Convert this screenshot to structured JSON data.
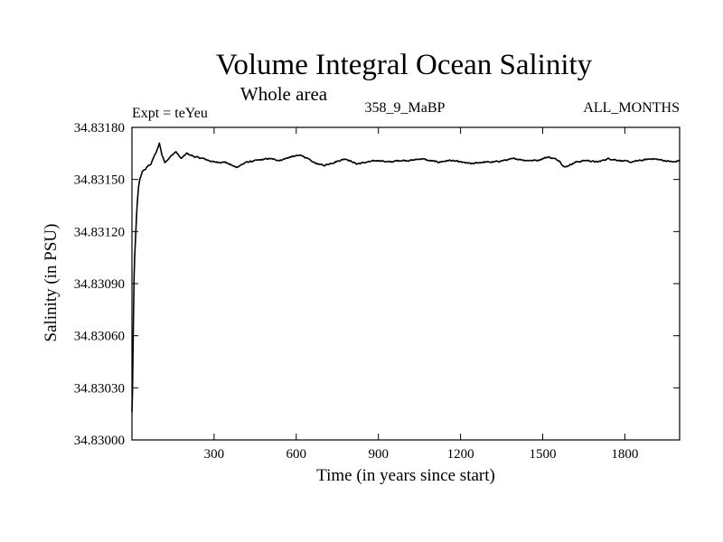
{
  "chart_data": {
    "type": "line",
    "title": "Volume Integral Ocean Salinity",
    "subtitle": "Whole area",
    "experiment": "Expt = teYeu",
    "period": "358_9_MaBP",
    "months": "ALL_MONTHS",
    "xlabel": "Time (in years since start)",
    "ylabel": "Salinity (in PSU)",
    "xlim": [
      0,
      2000
    ],
    "ylim": [
      34.83,
      34.8318
    ],
    "x_ticks": [
      300,
      600,
      900,
      1200,
      1500,
      1800
    ],
    "x_tick_labels": [
      "300",
      "600",
      "900",
      "1200",
      "1500",
      "1800"
    ],
    "y_ticks": [
      34.83,
      34.8303,
      34.8306,
      34.8309,
      34.8312,
      34.8315,
      34.8318
    ],
    "y_tick_labels": [
      "34.83000",
      "34.83030",
      "34.83060",
      "34.83090",
      "34.83120",
      "34.83150",
      "34.83180"
    ],
    "grid": false,
    "series": [
      {
        "name": "salinity",
        "color": "#000000",
        "x": [
          0,
          2,
          4,
          6,
          8,
          10,
          12,
          15,
          18,
          21,
          25,
          30,
          35,
          40,
          50,
          60,
          70,
          80,
          90,
          100,
          110,
          120,
          140,
          160,
          180,
          200,
          230,
          260,
          300,
          340,
          380,
          420,
          460,
          500,
          540,
          580,
          620,
          660,
          700,
          740,
          780,
          820,
          860,
          900,
          940,
          980,
          1020,
          1060,
          1080,
          1120,
          1160,
          1200,
          1240,
          1280,
          1320,
          1360,
          1400,
          1440,
          1480,
          1520,
          1560,
          1580,
          1620,
          1660,
          1700,
          1740,
          1780,
          1820,
          1860,
          1900,
          1940,
          1980,
          2000
        ],
        "values": [
          34.83016,
          34.83028,
          34.83052,
          34.83075,
          34.83095,
          34.83105,
          34.83112,
          34.83122,
          34.83133,
          34.8314,
          34.83147,
          34.83151,
          34.83153,
          34.83155,
          34.83156,
          34.83158,
          34.83159,
          34.83163,
          34.83166,
          34.83171,
          34.83164,
          34.8316,
          34.83163,
          34.83166,
          34.83162,
          34.83165,
          34.83163,
          34.83162,
          34.8316,
          34.8316,
          34.83157,
          34.8316,
          34.83161,
          34.83162,
          34.83161,
          34.83163,
          34.83164,
          34.8316,
          34.83158,
          34.8316,
          34.83162,
          34.83159,
          34.8316,
          34.83161,
          34.8316,
          34.83161,
          34.83161,
          34.83162,
          34.83161,
          34.8316,
          34.83161,
          34.8316,
          34.83159,
          34.8316,
          34.8316,
          34.83161,
          34.83162,
          34.83161,
          34.83161,
          34.83163,
          34.83161,
          34.83157,
          34.8316,
          34.83161,
          34.8316,
          34.83162,
          34.83161,
          34.8316,
          34.83161,
          34.83162,
          34.83161,
          34.8316,
          34.83161
        ]
      }
    ]
  }
}
